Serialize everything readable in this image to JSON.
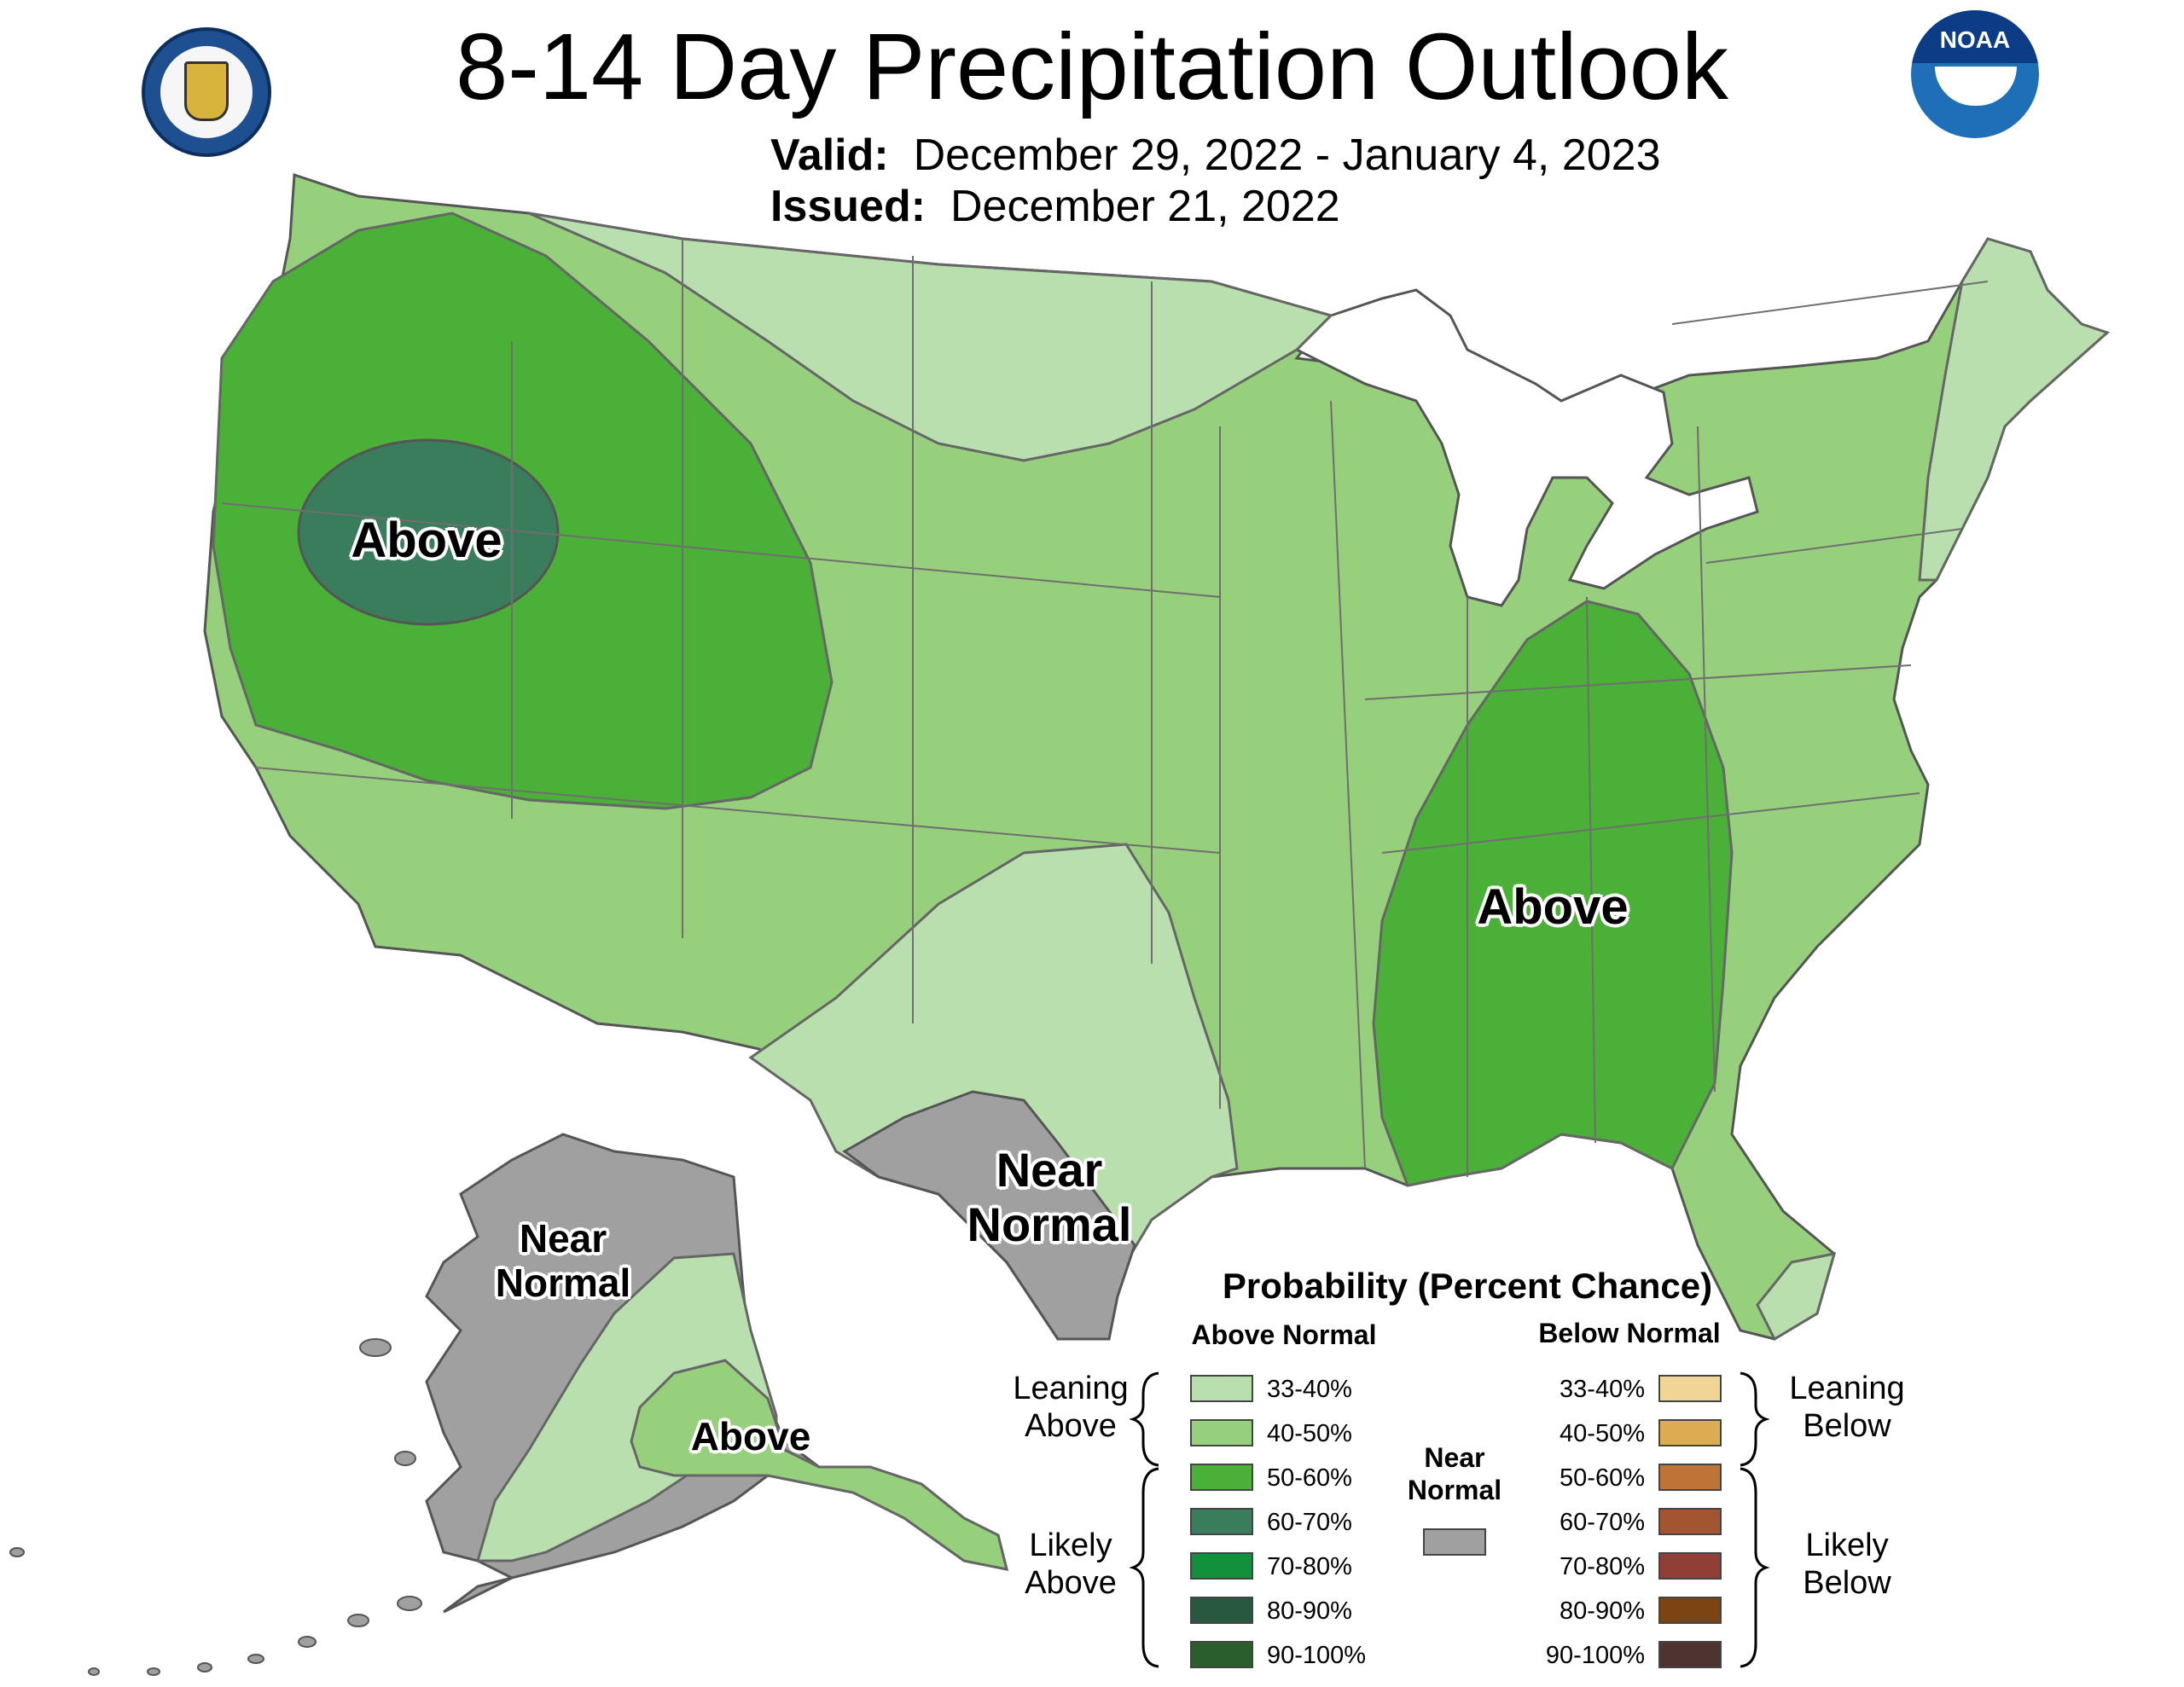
{
  "header": {
    "title": "8-14 Day Precipitation Outlook",
    "valid_label": "Valid:",
    "valid_dates": "December 29, 2022 - January 4, 2023",
    "issued_label": "Issued:",
    "issued_date": "December 21, 2022"
  },
  "logos": {
    "left": "department-of-commerce-seal",
    "right": "noaa-logo",
    "right_text": "NOAA"
  },
  "map": {
    "labels": {
      "west_above": "Above",
      "southeast_above": "Above",
      "texas_near_line1": "Near",
      "texas_near_line2": "Normal",
      "alaska_near_line1": "Near",
      "alaska_near_line2": "Normal",
      "alaska_above": "Above"
    }
  },
  "legend": {
    "title": "Probability (Percent Chance)",
    "above_header": "Above Normal",
    "below_header": "Below Normal",
    "leaning_above": [
      "Leaning",
      "Above"
    ],
    "likely_above": [
      "Likely",
      "Above"
    ],
    "leaning_below": [
      "Leaning",
      "Below"
    ],
    "likely_below": [
      "Likely",
      "Below"
    ],
    "near_normal": [
      "Near",
      "Normal"
    ],
    "near_normal_color": "#a0a0a0",
    "above_rows": [
      {
        "label": "33-40%",
        "color": "#b9dfaf"
      },
      {
        "label": "40-50%",
        "color": "#97d07c"
      },
      {
        "label": "50-60%",
        "color": "#4ab038"
      },
      {
        "label": "60-70%",
        "color": "#3a7d5c"
      },
      {
        "label": "70-80%",
        "color": "#13903c"
      },
      {
        "label": "80-90%",
        "color": "#28583e"
      },
      {
        "label": "90-100%",
        "color": "#2a5e2c"
      }
    ],
    "below_rows": [
      {
        "label": "33-40%",
        "color": "#f1d597"
      },
      {
        "label": "40-50%",
        "color": "#dcac52"
      },
      {
        "label": "50-60%",
        "color": "#bf7336"
      },
      {
        "label": "60-70%",
        "color": "#a35430"
      },
      {
        "label": "70-80%",
        "color": "#913f36"
      },
      {
        "label": "80-90%",
        "color": "#7b4412"
      },
      {
        "label": "90-100%",
        "color": "#4f3330"
      }
    ]
  }
}
